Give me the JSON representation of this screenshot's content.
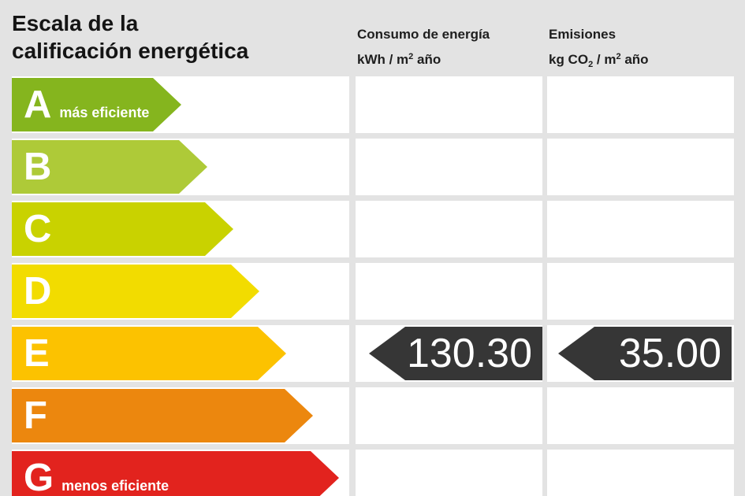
{
  "header": {
    "title_line1": "Escala de la",
    "title_line2": "calificación energética",
    "consumo": {
      "line1": "Consumo de energía",
      "unit_prefix": "kWh / m",
      "unit_sup": "2",
      "unit_suffix": " año"
    },
    "emisiones": {
      "line1": "Emisiones",
      "unit_prefix": "kg CO",
      "unit_sub": "2",
      "unit_mid": " / m",
      "unit_sup": "2",
      "unit_suffix": " año"
    }
  },
  "scale": {
    "rows": [
      {
        "letter": "A",
        "note": "más eficiente",
        "color": "#85b51e",
        "arrow_width": 215
      },
      {
        "letter": "B",
        "note": "",
        "color": "#aeca38",
        "arrow_width": 248
      },
      {
        "letter": "C",
        "note": "",
        "color": "#c9d200",
        "arrow_width": 281
      },
      {
        "letter": "D",
        "note": "",
        "color": "#f2dc00",
        "arrow_width": 314
      },
      {
        "letter": "E",
        "note": "",
        "color": "#fcc200",
        "arrow_width": 348
      },
      {
        "letter": "F",
        "note": "",
        "color": "#ec870e",
        "arrow_width": 382
      },
      {
        "letter": "G",
        "note": "menos eficiente",
        "color": "#e2231e",
        "arrow_width": 415
      }
    ]
  },
  "values": {
    "rating_row": "E",
    "consumo": "130.30",
    "emisiones": "35.00",
    "arrow_color": "#363636"
  },
  "chart_data": {
    "type": "bar",
    "title": "Escala de la calificación energética",
    "categories": [
      "A",
      "B",
      "C",
      "D",
      "E",
      "F",
      "G"
    ],
    "category_colors": [
      "#85b51e",
      "#aeca38",
      "#c9d200",
      "#f2dc00",
      "#fcc200",
      "#ec870e",
      "#e2231e"
    ],
    "category_notes": {
      "A": "más eficiente",
      "G": "menos eficiente"
    },
    "columns": [
      "Consumo de energía kWh/m2 año",
      "Emisiones kg CO2/m2 año"
    ],
    "rating": "E",
    "series": [
      {
        "name": "Consumo de energía kWh/m2 año",
        "category": "E",
        "value": 130.3
      },
      {
        "name": "Emisiones kg CO2/m2 año",
        "category": "E",
        "value": 35.0
      }
    ],
    "legend_position": "none",
    "grid": false
  }
}
